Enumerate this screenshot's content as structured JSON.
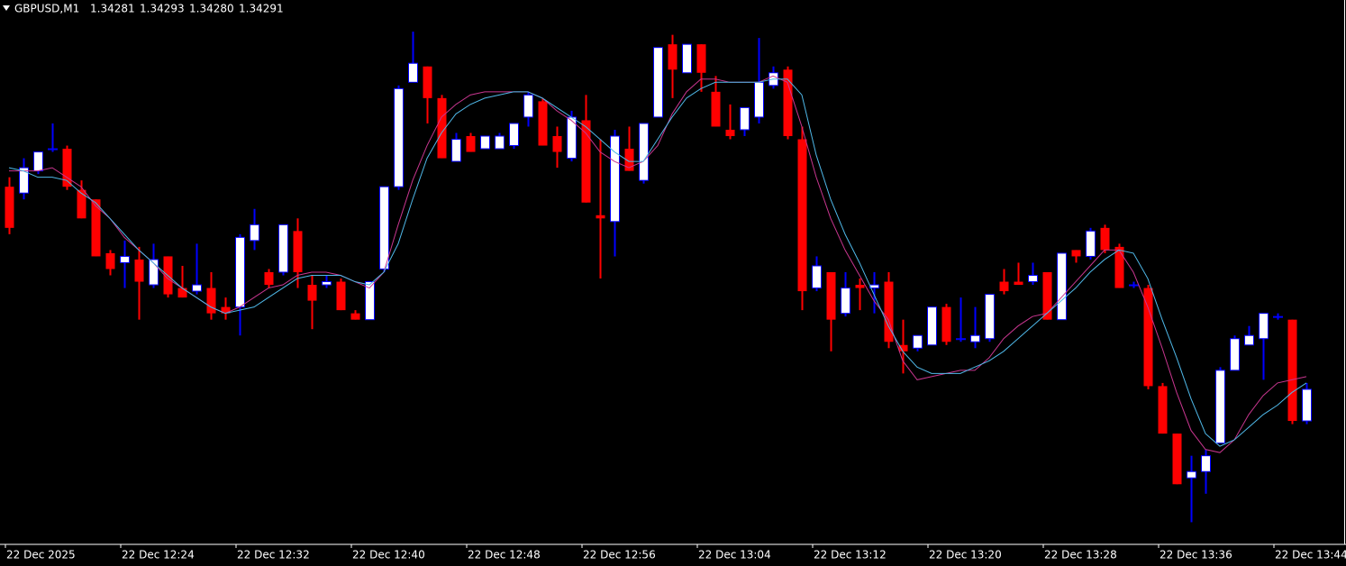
{
  "chart_data": {
    "type": "candlestick",
    "title": "GBPUSD,M1",
    "quote": [
      "1.34281",
      "1.34293",
      "1.34280",
      "1.34291"
    ],
    "categories": [
      "22 Dec 2025",
      null,
      null,
      null,
      null,
      null,
      null,
      null,
      "22 Dec 12:24",
      null,
      null,
      null,
      null,
      null,
      null,
      null,
      "22 Dec 12:32",
      null,
      null,
      null,
      null,
      null,
      null,
      null,
      "22 Dec 12:40",
      null,
      null,
      null,
      null,
      null,
      null,
      null,
      "22 Dec 12:48",
      null,
      null,
      null,
      null,
      null,
      null,
      null,
      "22 Dec 12:56",
      null,
      null,
      null,
      null,
      null,
      null,
      null,
      "22 Dec 13:04",
      null,
      null,
      null,
      null,
      null,
      null,
      null,
      "22 Dec 13:12",
      null,
      null,
      null,
      null,
      null,
      null,
      null,
      "22 Dec 13:20",
      null,
      null,
      null,
      null,
      null,
      null,
      null,
      "22 Dec 13:28",
      null,
      null,
      null,
      null,
      null,
      null,
      null,
      "22 Dec 13:36",
      null,
      null,
      null,
      null,
      null,
      null,
      null,
      "22 Dec 13:44",
      null,
      null
    ],
    "open": [
      1.34355,
      1.34353,
      1.3436,
      1.34367,
      1.34367,
      1.34354,
      1.34351,
      1.34334,
      1.34331,
      1.34332,
      1.34324,
      1.34333,
      1.34323,
      1.34322,
      1.34323,
      1.34317,
      1.34317,
      1.34338,
      1.34328,
      1.34328,
      1.34341,
      1.34324,
      1.34324,
      1.34325,
      1.34315,
      1.34313,
      1.34329,
      1.34355,
      1.34388,
      1.34393,
      1.34383,
      1.34363,
      1.34371,
      1.34367,
      1.34367,
      1.34368,
      1.34377,
      1.34382,
      1.34371,
      1.34364,
      1.34376,
      1.34346,
      1.34344,
      1.34367,
      1.34357,
      1.34377,
      1.344,
      1.34391,
      1.344,
      1.34385,
      1.34373,
      1.34373,
      1.34377,
      1.34387,
      1.34392,
      1.3437,
      1.34323,
      1.34328,
      1.34315,
      1.34324,
      1.34323,
      1.34325,
      1.34305,
      1.34304,
      1.34305,
      1.34317,
      1.34307,
      1.34306,
      1.34307,
      1.34325,
      1.34325,
      1.34325,
      1.34328,
      1.34313,
      1.34335,
      1.34333,
      1.34342,
      1.34336,
      1.34324,
      1.34323,
      1.34292,
      1.34277,
      1.34263,
      1.34265,
      1.34274,
      1.34297,
      1.34305,
      1.34307,
      1.34314,
      1.34313,
      1.34281
    ],
    "high": [
      1.34358,
      1.34364,
      1.34366,
      1.34375,
      1.34368,
      1.34357,
      1.34351,
      1.34335,
      1.34338,
      1.34336,
      1.34337,
      1.34333,
      1.3433,
      1.34337,
      1.34328,
      1.3432,
      1.3434,
      1.34348,
      1.34329,
      1.34343,
      1.34345,
      1.34327,
      1.34327,
      1.34326,
      1.34316,
      1.34325,
      1.34355,
      1.34387,
      1.34404,
      1.34393,
      1.34384,
      1.34372,
      1.34372,
      1.34371,
      1.34372,
      1.34375,
      1.34385,
      1.34383,
      1.34374,
      1.34379,
      1.34384,
      1.3437,
      1.34373,
      1.34374,
      1.34375,
      1.34399,
      1.34403,
      1.344,
      1.344,
      1.3439,
      1.34381,
      1.3438,
      1.34402,
      1.34393,
      1.34393,
      1.34374,
      1.34333,
      1.34328,
      1.34328,
      1.34326,
      1.34328,
      1.34328,
      1.34313,
      1.34308,
      1.34317,
      1.34318,
      1.3432,
      1.34317,
      1.34321,
      1.34329,
      1.34331,
      1.34331,
      1.34328,
      1.34334,
      1.34335,
      1.34342,
      1.34343,
      1.34337,
      1.34325,
      1.34324,
      1.34293,
      1.34277,
      1.3427,
      1.34272,
      1.34298,
      1.34308,
      1.34311,
      1.34315,
      1.34315,
      1.34313,
      1.34293
    ],
    "low": [
      1.3434,
      1.34351,
      1.34359,
      1.34366,
      1.34354,
      1.34345,
      1.34333,
      1.34327,
      1.34323,
      1.34313,
      1.34323,
      1.3432,
      1.3432,
      1.34321,
      1.34313,
      1.34313,
      1.34308,
      1.34335,
      1.34323,
      1.34327,
      1.34323,
      1.3431,
      1.34323,
      1.34316,
      1.34313,
      1.34313,
      1.34328,
      1.34354,
      1.34388,
      1.34375,
      1.34364,
      1.34363,
      1.34366,
      1.34367,
      1.34367,
      1.34367,
      1.34374,
      1.34368,
      1.34361,
      1.34363,
      1.3435,
      1.34326,
      1.34333,
      1.3436,
      1.34356,
      1.34377,
      1.34383,
      1.34391,
      1.34385,
      1.34374,
      1.3437,
      1.34371,
      1.34375,
      1.34386,
      1.3437,
      1.34316,
      1.34322,
      1.34303,
      1.34314,
      1.34316,
      1.34315,
      1.34304,
      1.34296,
      1.34303,
      1.34305,
      1.34305,
      1.34306,
      1.34304,
      1.34306,
      1.34321,
      1.34324,
      1.34324,
      1.34313,
      1.34313,
      1.34331,
      1.34332,
      1.34334,
      1.34323,
      1.34323,
      1.34291,
      1.34277,
      1.34261,
      1.34249,
      1.34258,
      1.34274,
      1.34297,
      1.34305,
      1.34294,
      1.34313,
      1.3428,
      1.3428
    ],
    "close": [
      1.34342,
      1.34361,
      1.34366,
      1.34367,
      1.34355,
      1.34345,
      1.34333,
      1.34329,
      1.34333,
      1.34325,
      1.34332,
      1.34321,
      1.3432,
      1.34324,
      1.34315,
      1.34315,
      1.34339,
      1.34343,
      1.34324,
      1.34343,
      1.34328,
      1.34319,
      1.34325,
      1.34316,
      1.34313,
      1.34325,
      1.34355,
      1.34386,
      1.34394,
      1.34383,
      1.34364,
      1.3437,
      1.34366,
      1.34371,
      1.34371,
      1.34375,
      1.34384,
      1.34368,
      1.34366,
      1.34377,
      1.3435,
      1.34345,
      1.34371,
      1.3436,
      1.34375,
      1.34399,
      1.34392,
      1.344,
      1.34391,
      1.34374,
      1.34371,
      1.3438,
      1.34388,
      1.34391,
      1.34371,
      1.34322,
      1.3433,
      1.34313,
      1.34323,
      1.34323,
      1.34324,
      1.34306,
      1.34303,
      1.34308,
      1.34317,
      1.34306,
      1.34307,
      1.34308,
      1.34321,
      1.34322,
      1.34324,
      1.34327,
      1.34313,
      1.34334,
      1.34333,
      1.34341,
      1.34335,
      1.34323,
      1.34324,
      1.34292,
      1.34277,
      1.34261,
      1.34265,
      1.3427,
      1.34297,
      1.34307,
      1.34308,
      1.34315,
      1.34314,
      1.34281,
      1.34291
    ],
    "lines": [
      {
        "color": "#c8368f",
        "values": [
          1.3436,
          1.3436,
          1.3436,
          1.34361,
          1.34358,
          1.34355,
          1.34349,
          1.34345,
          1.34339,
          1.34335,
          1.34331,
          1.34326,
          1.34323,
          1.3432,
          1.34317,
          1.34315,
          1.34317,
          1.3432,
          1.34323,
          1.34324,
          1.34327,
          1.34328,
          1.34328,
          1.34327,
          1.34325,
          1.34323,
          1.34328,
          1.34343,
          1.34357,
          1.34368,
          1.34377,
          1.34381,
          1.34384,
          1.34385,
          1.34385,
          1.34385,
          1.34385,
          1.34383,
          1.34379,
          1.34376,
          1.34372,
          1.34366,
          1.34363,
          1.34361,
          1.34363,
          1.34368,
          1.34378,
          1.34385,
          1.34389,
          1.34389,
          1.34388,
          1.34388,
          1.34388,
          1.3439,
          1.34388,
          1.34374,
          1.34358,
          1.34345,
          1.34335,
          1.34327,
          1.34319,
          1.34313,
          1.343,
          1.34294,
          1.34295,
          1.34296,
          1.34297,
          1.34297,
          1.34301,
          1.34307,
          1.34311,
          1.34314,
          1.34315,
          1.3432,
          1.34325,
          1.3433,
          1.34335,
          1.34335,
          1.34328,
          1.34317,
          1.34304,
          1.3429,
          1.34278,
          1.34272,
          1.34271,
          1.34275,
          1.34283,
          1.34289,
          1.34293,
          1.34294,
          1.34295
        ]
      },
      {
        "color": "#4fb8e8",
        "values": [
          1.34361,
          1.3436,
          1.34358,
          1.34358,
          1.34357,
          1.34353,
          1.3435,
          1.34345,
          1.3434,
          1.34335,
          1.34331,
          1.34327,
          1.34323,
          1.3432,
          1.34317,
          1.34315,
          1.34316,
          1.34317,
          1.3432,
          1.34323,
          1.34326,
          1.34327,
          1.34327,
          1.34327,
          1.34325,
          1.34324,
          1.34328,
          1.34337,
          1.34351,
          1.34364,
          1.34372,
          1.34378,
          1.34381,
          1.34383,
          1.34384,
          1.34385,
          1.34385,
          1.34383,
          1.3438,
          1.34377,
          1.34374,
          1.3437,
          1.34366,
          1.34363,
          1.34363,
          1.3437,
          1.34377,
          1.34383,
          1.34386,
          1.34388,
          1.34388,
          1.34388,
          1.34388,
          1.34389,
          1.34389,
          1.34384,
          1.34365,
          1.34351,
          1.3434,
          1.34331,
          1.34321,
          1.34311,
          1.34303,
          1.34298,
          1.34296,
          1.34296,
          1.34296,
          1.34298,
          1.343,
          1.34303,
          1.34307,
          1.34311,
          1.34315,
          1.34319,
          1.34323,
          1.34328,
          1.34332,
          1.34335,
          1.34334,
          1.34326,
          1.34313,
          1.34301,
          1.34288,
          1.34277,
          1.34273,
          1.34275,
          1.34279,
          1.34283,
          1.34286,
          1.3429,
          1.34293
        ]
      }
    ],
    "ylim": [
      1.34242,
      1.34414
    ],
    "colors": {
      "up": "#ffffff",
      "up_wick": "#0000ff",
      "down": "#ff0000",
      "background": "#000000",
      "text": "#ffffff"
    }
  }
}
